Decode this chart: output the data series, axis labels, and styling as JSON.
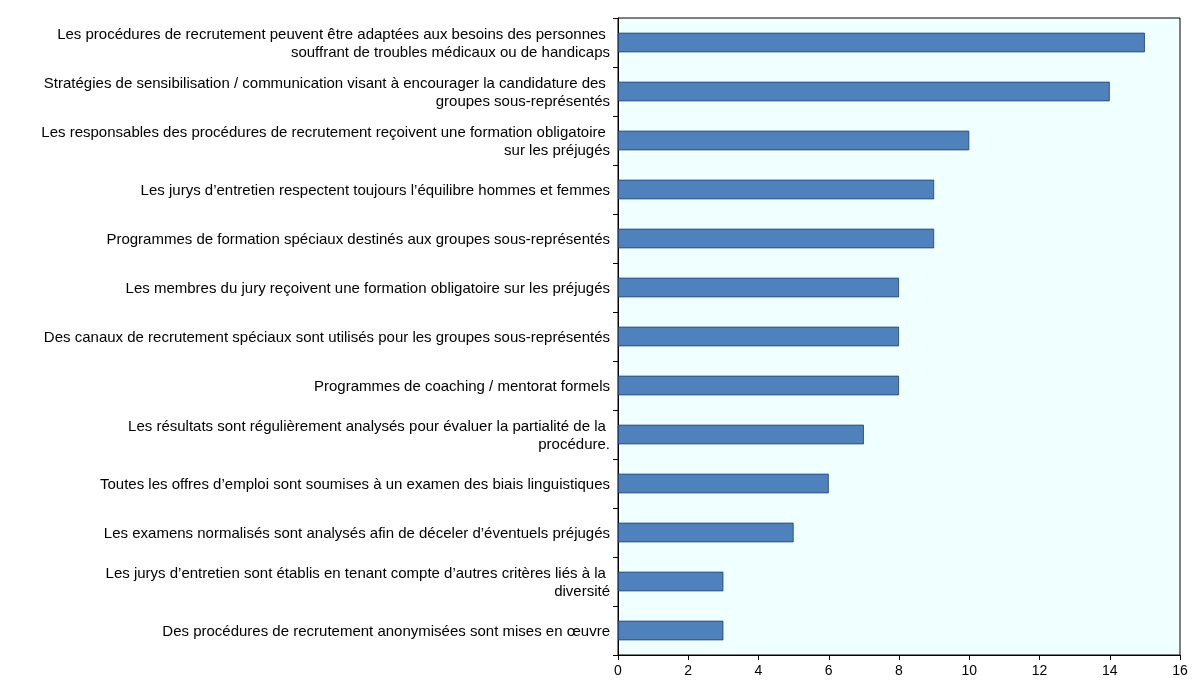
{
  "chart_data": {
    "type": "bar",
    "orientation": "horizontal",
    "categories": [
      "Les procédures de recrutement peuvent être adaptées aux besoins des personnes souffrant de troubles médicaux ou de handicaps",
      "Stratégies de sensibilisation / communication visant à encourager la candidature des groupes sous-représentés",
      "Les responsables des procédures de recrutement reçoivent une formation obligatoire sur les préjugés",
      "Les jurys d’entretien respectent toujours l’équilibre hommes et femmes",
      "Programmes de formation spéciaux destinés aux groupes sous-représentés",
      "Les membres du jury reçoivent une formation obligatoire sur les préjugés",
      "Des canaux de recrutement spéciaux sont utilisés pour les groupes sous-représentés",
      "Programmes de coaching / mentorat formels",
      "Les résultats sont régulièrement analysés pour évaluer la partialité de la procédure.",
      "Toutes les offres d’emploi sont soumises à un examen des biais linguistiques",
      "Les examens normalisés sont analysés afin de déceler d’éventuels préjugés",
      "Les jurys d’entretien sont établis en tenant compte d’autres critères liés à la diversité",
      "Des procédures de recrutement anonymisées sont mises en œuvre"
    ],
    "values": [
      15,
      14,
      10,
      9,
      9,
      8,
      8,
      8,
      7,
      6,
      5,
      3,
      3
    ],
    "color": "#4f81bd",
    "xlim": [
      0,
      16
    ],
    "xticks": [
      0,
      2,
      4,
      6,
      8,
      10,
      12,
      14,
      16
    ],
    "grid": false
  }
}
